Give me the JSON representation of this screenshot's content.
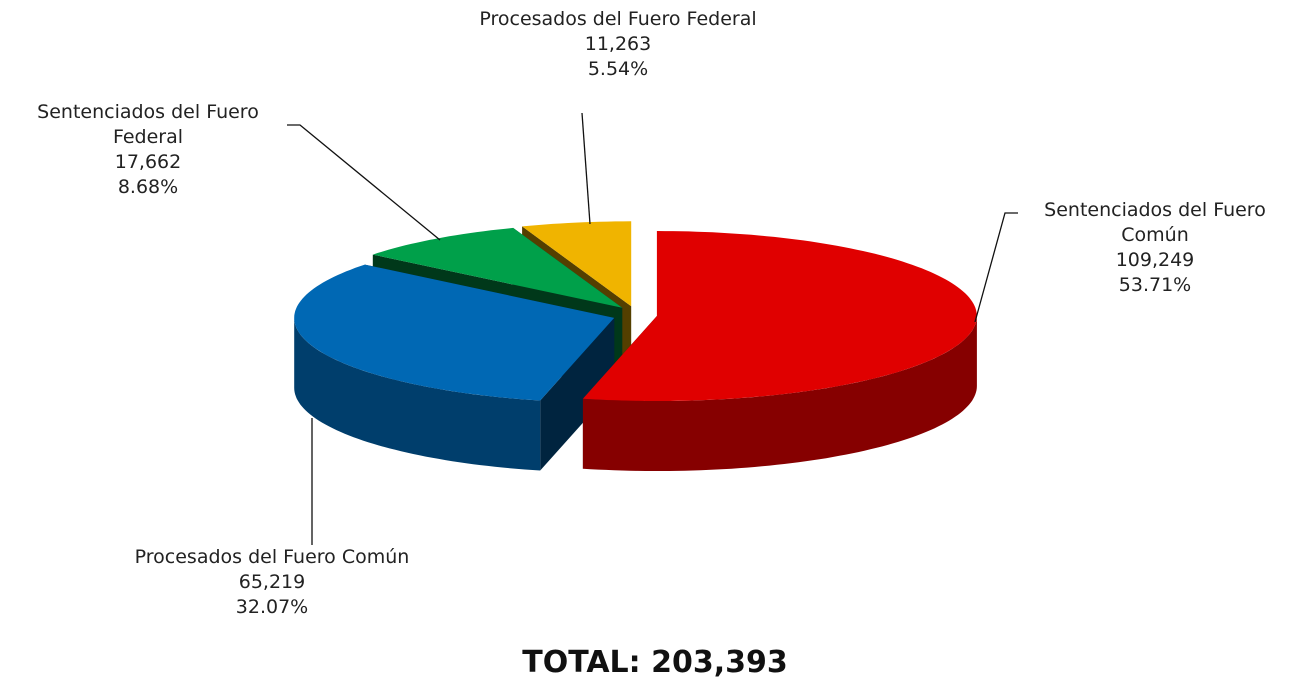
{
  "chart_data": {
    "type": "pie",
    "categories": [
      "Sentenciados del Fuero Común",
      "Procesados del Fuero Común",
      "Sentenciados del Fuero Federal",
      "Procesados del Fuero Federal"
    ],
    "values": [
      109249,
      65219,
      17662,
      11263
    ],
    "value_labels": [
      "109,249",
      "65,219",
      "17,662",
      "11,263"
    ],
    "percents": [
      53.71,
      32.07,
      8.68,
      5.54
    ],
    "percent_labels": [
      "53.71%",
      "32.07%",
      "8.68%",
      "5.54%"
    ],
    "colors": [
      "#e00000",
      "#0068b4",
      "#00a04a",
      "#f0b400"
    ],
    "total_label": "TOTAL: 203,393"
  }
}
